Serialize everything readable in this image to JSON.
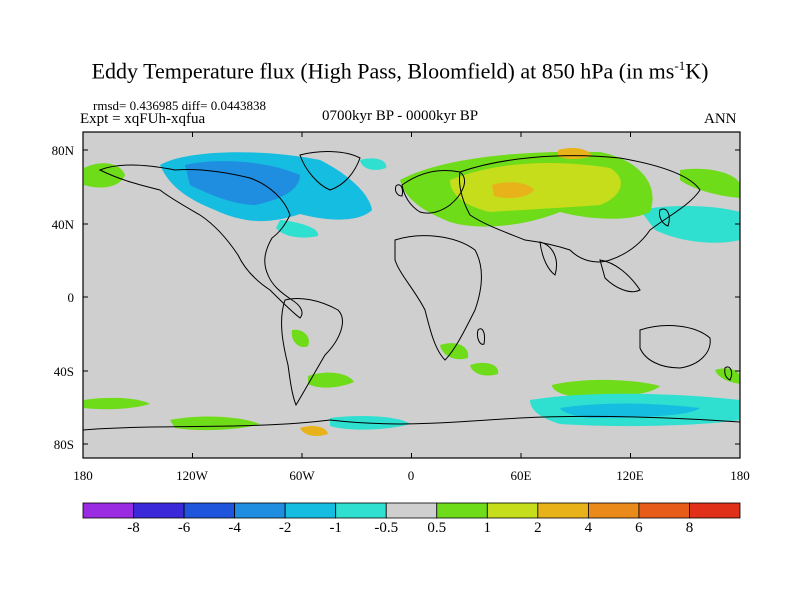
{
  "title": {
    "main": "Eddy Temperature flux (High Pass, Bloomfield) at 850 hPa (in ms",
    "sup": "-1",
    "tail": "K)"
  },
  "stats": "rmsd= 0.436985 diff= 0.0443838",
  "expt": "Expt = xqFUh-xqfua",
  "period": "0700kyr BP - 0000kyr BP",
  "season": "ANN",
  "lat_ticks": [
    "80N",
    "40N",
    "0",
    "40S",
    "80S"
  ],
  "lon_ticks": [
    "180",
    "120W",
    "60W",
    "0",
    "60E",
    "120E",
    "180"
  ],
  "colorbar": {
    "labels": [
      "-8",
      "-6",
      "-4",
      "-2",
      "-1",
      "-0.5",
      "0.5",
      "1",
      "2",
      "4",
      "6",
      "8"
    ],
    "colors": [
      "#9a2be2",
      "#3b28d8",
      "#1f55dd",
      "#1f8de0",
      "#15bde0",
      "#2fe0d0",
      "#cfcfcf",
      "#6fdc1a",
      "#c5dd1a",
      "#e8b21a",
      "#ea8a1a",
      "#e85c1a",
      "#e0301a"
    ]
  },
  "colors": {
    "land_ocean_base": "#cfcfcf",
    "coast": "#000000"
  }
}
